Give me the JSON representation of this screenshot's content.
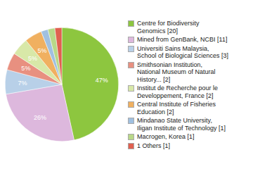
{
  "chart_data": {
    "type": "pie",
    "categories": [
      "Centre for Biodiversity\nGenomics [20]",
      "Mined from GenBank, NCBI [11]",
      "Universiti Sains Malaysia,\nSchool of Biological Sciences [3]",
      "Smithsonian Institution,\nNational Museum of Natural\nHistory... [2]",
      "Institut de Recherche pour le\nDeveloppement, France [2]",
      "Central Institute of Fisheries\nEducation [2]",
      "Mindanao State University,\nIligan Institute of Technology [1]",
      "Macrogen, Korea [1]",
      "1 Others [1]"
    ],
    "values": [
      47,
      26,
      7,
      5,
      5,
      5,
      2,
      2,
      2
    ],
    "value_labels": [
      "47%",
      "26%",
      "7%",
      "5%",
      "5%",
      "5%",
      null,
      null,
      null
    ],
    "colors": [
      "#8dc63f",
      "#ddb8dd",
      "#b8d0e8",
      "#e89080",
      "#d8e8a8",
      "#f0b060",
      "#a0c0e0",
      "#b8d888",
      "#e06050"
    ],
    "data_labels": true
  }
}
